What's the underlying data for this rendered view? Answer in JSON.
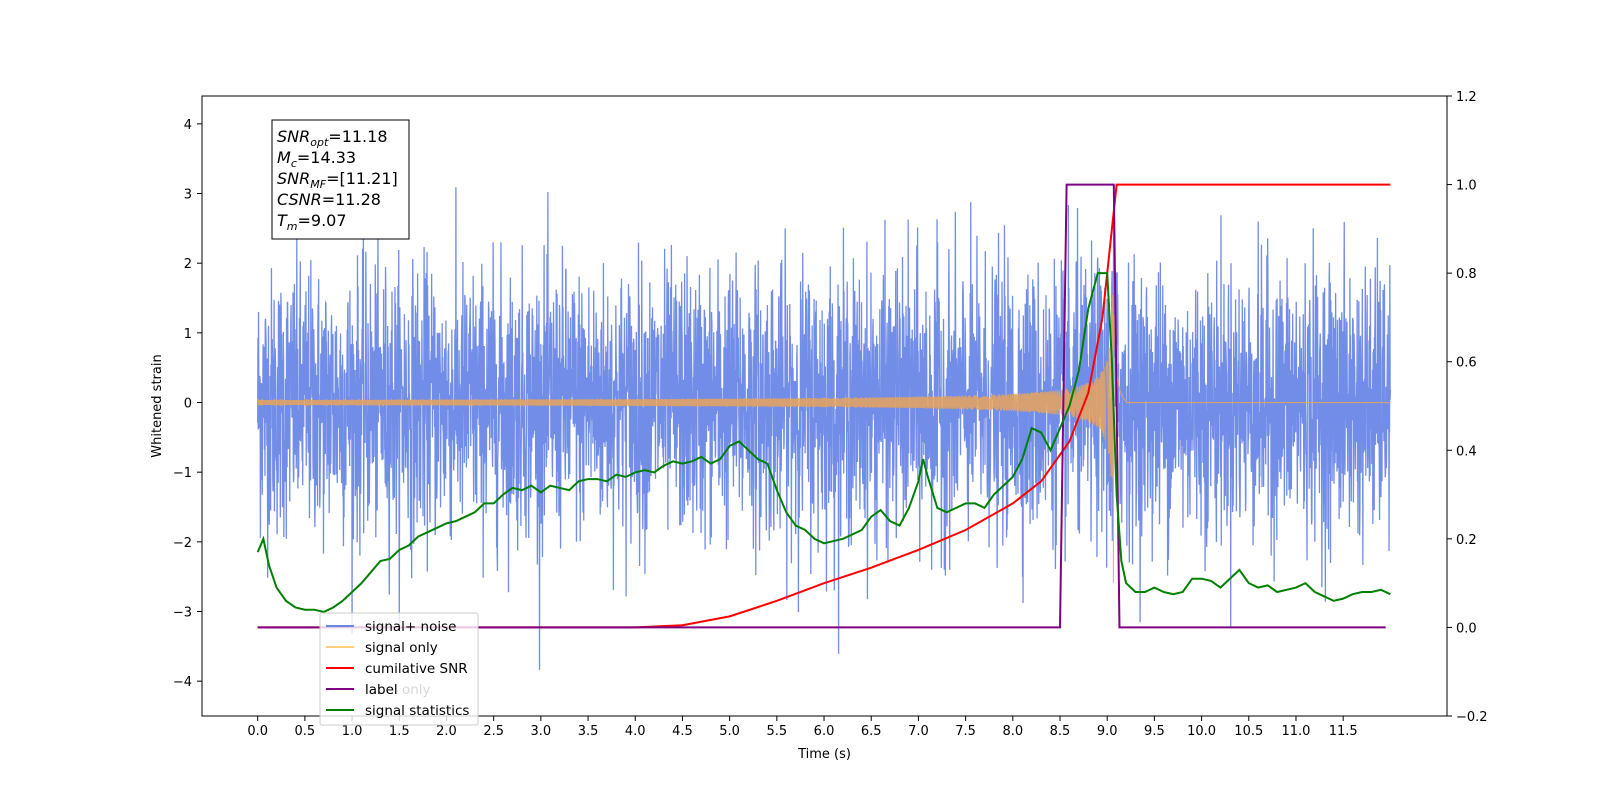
{
  "chart_data": {
    "type": "line",
    "xlabel": "Time (s)",
    "ylabel_left": "Whitened strain",
    "ylim_left": [
      -4.5,
      4.4
    ],
    "ylim_right": [
      -0.2,
      1.2
    ],
    "xlim": [
      -0.59,
      12.6
    ],
    "xticks": [
      "0.0",
      "0.5",
      "1.0",
      "1.5",
      "2.0",
      "2.5",
      "3.0",
      "3.5",
      "4.0",
      "4.5",
      "5.0",
      "5.5",
      "6.0",
      "6.5",
      "7.0",
      "7.5",
      "8.0",
      "8.5",
      "9.0",
      "9.5",
      "10.0",
      "10.5",
      "11.0",
      "11.5"
    ],
    "yticks_left": [
      "4",
      "3",
      "2",
      "1",
      "0",
      "−1",
      "−2",
      "−3",
      "−4"
    ],
    "yticks_right": [
      "1.2",
      "1.0",
      "0.8",
      "0.6",
      "0.4",
      "0.2",
      "0.0",
      "−0.2"
    ],
    "info_box": [
      {
        "base": "SNR",
        "sub": "opt",
        "value": "=11.18"
      },
      {
        "base": "M",
        "sub": "c",
        "value": "=14.33"
      },
      {
        "base": "SNR",
        "sub": "MF",
        "value": "=[11.21]"
      },
      {
        "base": "CSNR",
        "sub": "",
        "value": "=11.28"
      },
      {
        "base": "T",
        "sub": "m",
        "value": "=9.07"
      }
    ],
    "series": [
      {
        "name": "signal+ noise",
        "axis": "left",
        "color": "#6a87e6",
        "envelope": {
          "typical_upper": 2.0,
          "typical_lower": -1.9,
          "max": 4.0,
          "min": -4.1,
          "x_start": 0.0,
          "x_end": 12.0
        }
      },
      {
        "name": "signal only",
        "axis": "left",
        "color": "#e8a35c",
        "chirp": {
          "t_merger": 9.07,
          "t_start": 0.0,
          "peak_amplitude": 2.6,
          "ringdown_end": 9.2
        }
      },
      {
        "name": "cumilative SNR",
        "axis": "right",
        "color": "#ff0000",
        "x": [
          0.0,
          4.0,
          4.5,
          5.0,
          5.5,
          6.0,
          6.5,
          7.0,
          7.5,
          8.0,
          8.3,
          8.6,
          8.8,
          8.95,
          9.05,
          9.1,
          12.0
        ],
        "y": [
          0.0,
          0.0,
          0.005,
          0.025,
          0.06,
          0.1,
          0.135,
          0.175,
          0.22,
          0.28,
          0.33,
          0.42,
          0.53,
          0.7,
          0.9,
          1.0,
          1.0
        ]
      },
      {
        "name": "label",
        "axis": "right",
        "color": "#800080",
        "x": [
          0.0,
          8.5,
          8.57,
          9.07,
          9.13,
          11.95
        ],
        "y": [
          0.0,
          0.0,
          1.0,
          1.0,
          0.0,
          0.0
        ]
      },
      {
        "name": "label only",
        "axis": "right",
        "color": "#000000",
        "hidden": true
      },
      {
        "name": "signal statistics",
        "axis": "right",
        "color": "#008000",
        "x": [
          0.0,
          0.06,
          0.12,
          0.2,
          0.3,
          0.4,
          0.5,
          0.6,
          0.7,
          0.8,
          0.9,
          1.0,
          1.1,
          1.2,
          1.3,
          1.4,
          1.5,
          1.6,
          1.7,
          1.8,
          1.9,
          2.0,
          2.1,
          2.2,
          2.3,
          2.4,
          2.5,
          2.6,
          2.7,
          2.8,
          2.9,
          3.0,
          3.1,
          3.2,
          3.3,
          3.4,
          3.5,
          3.6,
          3.7,
          3.8,
          3.9,
          4.0,
          4.1,
          4.2,
          4.3,
          4.4,
          4.5,
          4.6,
          4.7,
          4.8,
          4.9,
          5.0,
          5.1,
          5.2,
          5.3,
          5.4,
          5.5,
          5.6,
          5.7,
          5.8,
          5.9,
          6.0,
          6.1,
          6.2,
          6.3,
          6.4,
          6.5,
          6.6,
          6.7,
          6.8,
          6.9,
          7.0,
          7.05,
          7.1,
          7.2,
          7.3,
          7.4,
          7.5,
          7.6,
          7.7,
          7.8,
          7.9,
          8.0,
          8.1,
          8.2,
          8.3,
          8.4,
          8.5,
          8.6,
          8.7,
          8.8,
          8.9,
          9.0,
          9.05,
          9.1,
          9.15,
          9.2,
          9.3,
          9.4,
          9.5,
          9.6,
          9.7,
          9.8,
          9.9,
          10.0,
          10.1,
          10.2,
          10.3,
          10.4,
          10.5,
          10.6,
          10.7,
          10.8,
          10.9,
          11.0,
          11.1,
          11.2,
          11.3,
          11.4,
          11.5,
          11.6,
          11.7,
          11.8,
          11.9,
          12.0
        ],
        "y": [
          0.17,
          0.2,
          0.14,
          0.09,
          0.06,
          0.045,
          0.04,
          0.04,
          0.035,
          0.045,
          0.06,
          0.08,
          0.1,
          0.125,
          0.15,
          0.155,
          0.175,
          0.185,
          0.205,
          0.215,
          0.225,
          0.235,
          0.24,
          0.25,
          0.26,
          0.28,
          0.28,
          0.3,
          0.315,
          0.31,
          0.32,
          0.305,
          0.32,
          0.315,
          0.31,
          0.33,
          0.335,
          0.335,
          0.33,
          0.345,
          0.34,
          0.35,
          0.355,
          0.35,
          0.365,
          0.375,
          0.37,
          0.375,
          0.385,
          0.37,
          0.38,
          0.41,
          0.42,
          0.4,
          0.38,
          0.37,
          0.31,
          0.26,
          0.23,
          0.22,
          0.2,
          0.19,
          0.195,
          0.2,
          0.21,
          0.22,
          0.25,
          0.265,
          0.24,
          0.23,
          0.27,
          0.33,
          0.38,
          0.34,
          0.27,
          0.26,
          0.27,
          0.28,
          0.28,
          0.27,
          0.3,
          0.32,
          0.34,
          0.38,
          0.45,
          0.44,
          0.4,
          0.45,
          0.5,
          0.58,
          0.72,
          0.8,
          0.8,
          0.6,
          0.3,
          0.15,
          0.1,
          0.08,
          0.08,
          0.09,
          0.08,
          0.075,
          0.08,
          0.11,
          0.11,
          0.105,
          0.09,
          0.11,
          0.13,
          0.1,
          0.09,
          0.095,
          0.08,
          0.085,
          0.09,
          0.1,
          0.08,
          0.07,
          0.06,
          0.065,
          0.075,
          0.08,
          0.08,
          0.085,
          0.075
        ]
      }
    ],
    "legend": {
      "placement": "lower-left"
    }
  }
}
